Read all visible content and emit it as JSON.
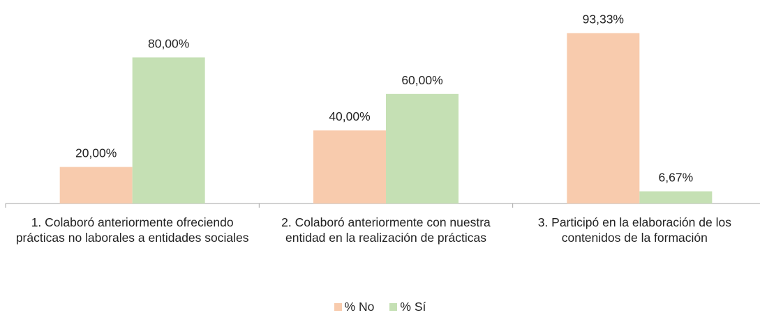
{
  "chart_data": {
    "type": "bar",
    "categories": [
      "1. Colaboró anteriormente ofreciendo prácticas no laborales a entidades sociales",
      "2. Colaboró anteriormente con nuestra entidad en la realización de prácticas",
      "3. Participó en la elaboración de los contenidos de la formación"
    ],
    "series": [
      {
        "name": "% No",
        "color": "#f8cbad",
        "values": [
          20,
          40,
          93.33
        ],
        "value_labels": [
          "20,00%",
          "40,00%",
          "93,33%"
        ]
      },
      {
        "name": "% Sí",
        "color": "#c5e0b4",
        "values": [
          80,
          60,
          6.67
        ],
        "value_labels": [
          "80,00%",
          "60,00%",
          "6,67%"
        ]
      }
    ],
    "ylim": [
      0,
      100
    ],
    "legend": "bottom"
  }
}
